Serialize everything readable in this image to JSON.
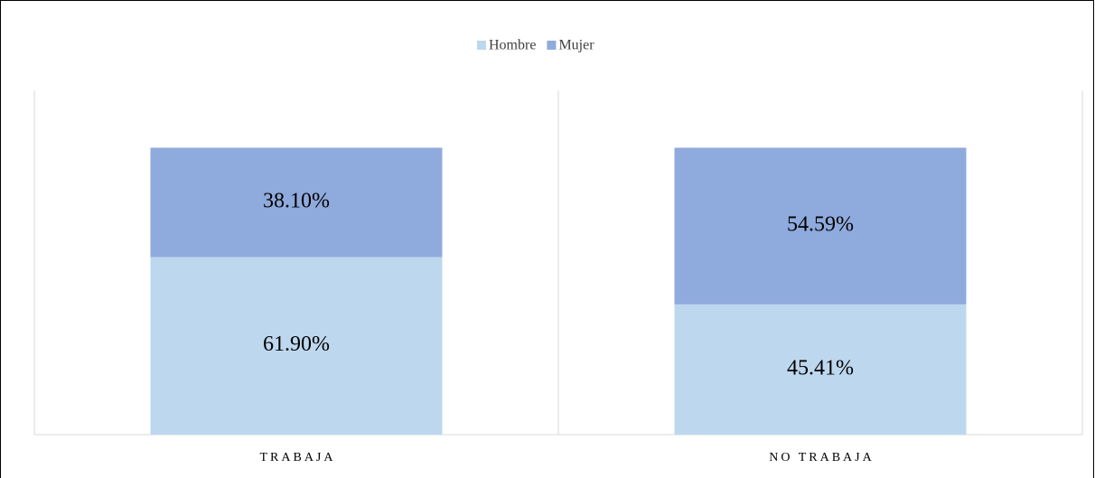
{
  "chart_data": {
    "type": "stacked_bar",
    "categories": [
      "TRABAJA",
      "NO TRABAJA"
    ],
    "series": [
      {
        "name": "Hombre",
        "color": "#bdd7ee",
        "values": [
          61.9,
          45.41
        ],
        "value_labels": [
          "61.90%",
          "45.41%"
        ]
      },
      {
        "name": "Mujer",
        "color": "#8faadc",
        "values": [
          38.1,
          54.59
        ],
        "value_labels": [
          "38.10%",
          "54.59%"
        ]
      }
    ],
    "ylim": [
      0,
      120
    ],
    "legend": "top"
  }
}
